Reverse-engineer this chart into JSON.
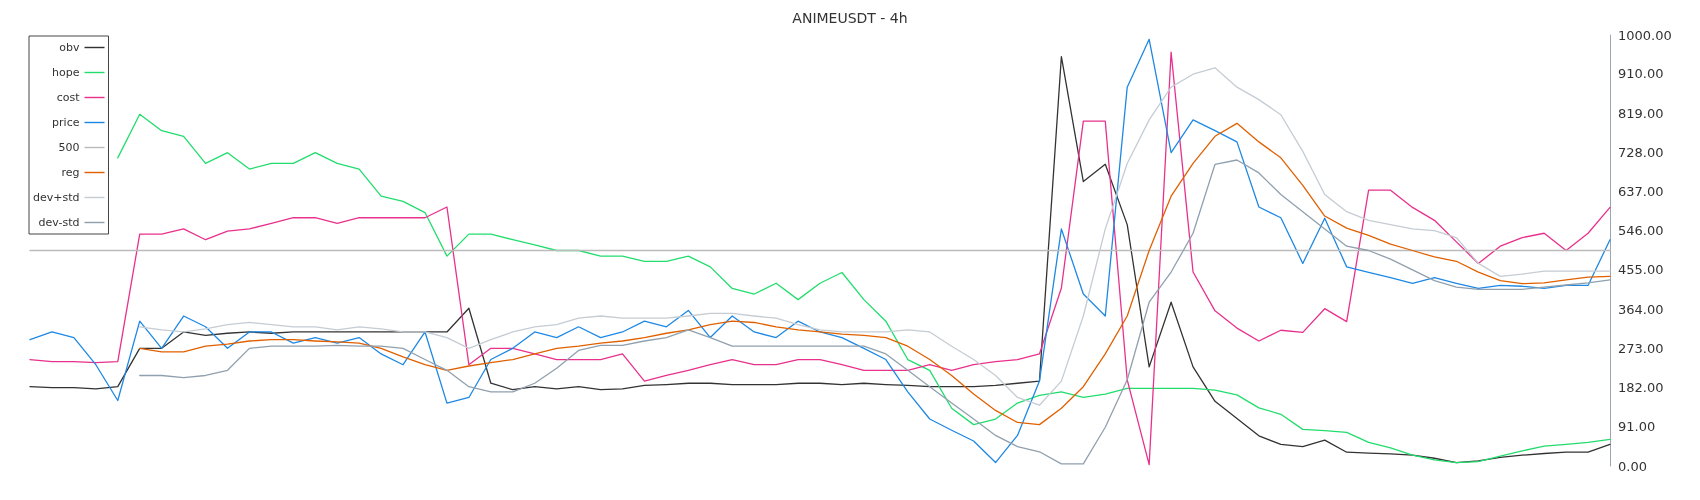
{
  "chart_data": {
    "type": "line",
    "title": "ANIMEUSDT - 4h",
    "categories": [
      null,
      null,
      null,
      null,
      null,
      null,
      null,
      null,
      null,
      null,
      null,
      null,
      null,
      null,
      null,
      null,
      null,
      null,
      null,
      null,
      null,
      null,
      null,
      null,
      null,
      null,
      null,
      null,
      null,
      null,
      null,
      null,
      null,
      null,
      null,
      null,
      null,
      null,
      null,
      null,
      null,
      null,
      null,
      null,
      null,
      null,
      null,
      null,
      null,
      null,
      null,
      null,
      null,
      null,
      null,
      null,
      null,
      null,
      null,
      null,
      null,
      null,
      null,
      null,
      null,
      null,
      null,
      null,
      null,
      null,
      null,
      null,
      null
    ],
    "series": [
      {
        "name": "obv",
        "color": "#333333",
        "values": [
          184,
          182,
          182,
          179,
          184,
          273,
          273,
          311,
          303,
          308,
          311,
          308,
          311,
          311,
          311,
          311,
          311,
          311,
          311,
          311,
          366,
          192,
          177,
          184,
          179,
          184,
          177,
          179,
          187,
          189,
          192,
          192,
          189,
          189,
          189,
          192,
          192,
          189,
          192,
          189,
          187,
          184,
          184,
          184,
          187,
          192,
          197,
          950,
          660,
          700,
          560,
          230,
          380,
          230,
          150,
          110,
          70,
          50,
          45,
          60,
          32,
          30,
          28,
          25,
          18,
          8,
          12,
          20,
          25,
          29,
          32,
          32,
          50
        ]
      },
      {
        "name": "hope",
        "color": "#22dd6e",
        "values": [
          null,
          null,
          null,
          null,
          715,
          816,
          778,
          765,
          702,
          727,
          689,
          702,
          702,
          727,
          702,
          689,
          626,
          614,
          588,
          487,
          538,
          538,
          525,
          513,
          500,
          500,
          487,
          487,
          475,
          475,
          487,
          462,
          412,
          399,
          424,
          386,
          424,
          449,
          386,
          336,
          247,
          222,
          134,
          96,
          109,
          146,
          164,
          172,
          159,
          167,
          180,
          180,
          180,
          180,
          176,
          165,
          135,
          120,
          85,
          82,
          78,
          55,
          42,
          25,
          14,
          8,
          10,
          23,
          35,
          46,
          50,
          55,
          62
        ]
      },
      {
        "name": "cost",
        "color": "#e8308c",
        "values": [
          247,
          242,
          242,
          240,
          242,
          538,
          538,
          550,
          525,
          545,
          550,
          563,
          576,
          576,
          563,
          576,
          576,
          576,
          576,
          601,
          235,
          273,
          273,
          260,
          247,
          247,
          247,
          260,
          197,
          210,
          222,
          235,
          247,
          235,
          235,
          247,
          247,
          235,
          222,
          222,
          222,
          235,
          222,
          235,
          242,
          247,
          260,
          413,
          800,
          800,
          200,
          3,
          960,
          450,
          360,
          320,
          290,
          315,
          310,
          365,
          335,
          640,
          640,
          600,
          570,
          520,
          470,
          510,
          530,
          540,
          500,
          540,
          600
        ]
      },
      {
        "name": "price",
        "color": "#1e88e5",
        "values": [
          293,
          311,
          298,
          235,
          152,
          336,
          273,
          348,
          323,
          273,
          311,
          311,
          285,
          298,
          285,
          298,
          260,
          235,
          311,
          146,
          159,
          247,
          273,
          311,
          298,
          323,
          298,
          311,
          336,
          323,
          361,
          298,
          348,
          311,
          298,
          336,
          311,
          298,
          273,
          247,
          172,
          109,
          83,
          58,
          8,
          71,
          197,
          550,
          399,
          348,
          879,
          990,
          727,
          803,
          778,
          752,
          601,
          576,
          470,
          575,
          462,
          449,
          437,
          424,
          437,
          424,
          412,
          419,
          417,
          412,
          419,
          419,
          525
        ]
      },
      {
        "name": "500",
        "color": "#bbbbbb",
        "values": [
          500,
          500,
          500,
          500,
          500,
          500,
          500,
          500,
          500,
          500,
          500,
          500,
          500,
          500,
          500,
          500,
          500,
          500,
          500,
          500,
          500,
          500,
          500,
          500,
          500,
          500,
          500,
          500,
          500,
          500,
          500,
          500,
          500,
          500,
          500,
          500,
          500,
          500,
          500,
          500,
          500,
          500,
          500,
          500,
          500,
          500,
          500,
          500,
          500,
          500,
          500,
          500,
          500,
          500,
          500,
          500,
          500,
          500,
          500,
          500,
          500,
          500,
          500,
          500,
          500,
          500,
          500,
          500,
          500,
          500,
          500,
          500,
          500
        ]
      },
      {
        "name": "reg",
        "color": "#e06000",
        "values": [
          null,
          null,
          null,
          null,
          null,
          273,
          265,
          265,
          278,
          283,
          290,
          293,
          293,
          290,
          288,
          285,
          273,
          253,
          235,
          222,
          232,
          240,
          247,
          260,
          273,
          278,
          285,
          290,
          298,
          308,
          316,
          328,
          336,
          333,
          323,
          316,
          311,
          306,
          303,
          298,
          278,
          247,
          210,
          167,
          129,
          101,
          96,
          134,
          184,
          260,
          348,
          500,
          626,
          702,
          765,
          795,
          752,
          715,
          651,
          580,
          552,
          535,
          515,
          500,
          485,
          475,
          450,
          430,
          423,
          425,
          432,
          438,
          440
        ]
      },
      {
        "name": "dev+std",
        "color": "#c5ccd3",
        "values": [
          null,
          null,
          null,
          null,
          null,
          323,
          316,
          311,
          318,
          328,
          333,
          328,
          323,
          323,
          316,
          323,
          318,
          311,
          311,
          298,
          273,
          293,
          311,
          323,
          328,
          343,
          348,
          343,
          343,
          343,
          348,
          354,
          354,
          348,
          343,
          328,
          316,
          311,
          311,
          311,
          316,
          311,
          278,
          247,
          210,
          159,
          141,
          197,
          348,
          550,
          702,
          803,
          879,
          909,
          924,
          879,
          850,
          815,
          730,
          630,
          590,
          570,
          560,
          550,
          546,
          530,
          470,
          440,
          445,
          452,
          452,
          452,
          452
        ]
      },
      {
        "name": "dev-std",
        "color": "#90a0ae",
        "values": [
          null,
          null,
          null,
          null,
          null,
          210,
          210,
          205,
          210,
          222,
          273,
          278,
          278,
          278,
          280,
          278,
          278,
          273,
          247,
          222,
          184,
          172,
          172,
          192,
          227,
          268,
          280,
          280,
          290,
          298,
          316,
          298,
          278,
          278,
          278,
          278,
          278,
          278,
          278,
          260,
          222,
          184,
          146,
          109,
          71,
          45,
          33,
          5,
          5,
          90,
          200,
          380,
          450,
          540,
          700,
          710,
          680,
          630,
          590,
          550,
          510,
          500,
          480,
          455,
          430,
          415,
          410,
          410,
          410,
          415,
          420,
          425,
          432
        ]
      }
    ],
    "ylim": [
      0,
      1000
    ],
    "yticks": [
      {
        "value": 0,
        "label": "0.00"
      },
      {
        "value": 91,
        "label": "91.00"
      },
      {
        "value": 182,
        "label": "182.00"
      },
      {
        "value": 273,
        "label": "273.00"
      },
      {
        "value": 364,
        "label": "364.00"
      },
      {
        "value": 455,
        "label": "455.00"
      },
      {
        "value": 546,
        "label": "546.00"
      },
      {
        "value": 637,
        "label": "637.00"
      },
      {
        "value": 728,
        "label": "728.00"
      },
      {
        "value": 819,
        "label": "819.00"
      },
      {
        "value": 910,
        "label": "910.00"
      },
      {
        "value": 1000,
        "label": "1000.00"
      }
    ],
    "tick_labels": "y",
    "legend": "top left",
    "grid": false
  }
}
